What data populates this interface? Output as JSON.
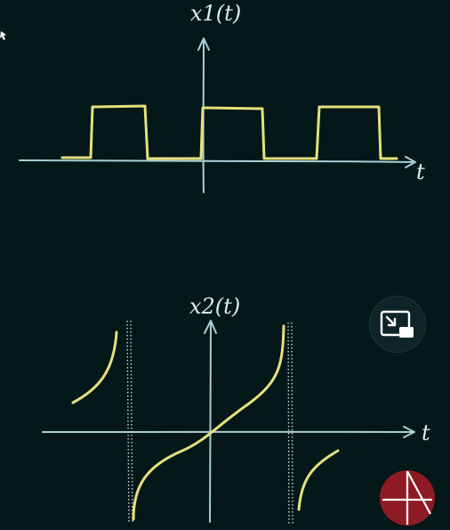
{
  "diagram": {
    "top_plot": {
      "ylabel": "x1(t)",
      "xlabel": "t",
      "signal_type": "periodic rectangular pulse train",
      "pulse_count": 3
    },
    "bottom_plot": {
      "ylabel": "x2(t)",
      "xlabel": "t",
      "signal_type": "periodic tangent-like curve with vertical asymptotes",
      "asymptote_count": 2
    }
  },
  "controls": {
    "pip_icon": "picture-in-picture-icon"
  },
  "branding": {
    "logo_icon": "channel-logo-icon",
    "logo_color": "#8e1b23"
  },
  "colors": {
    "background": "#04181a",
    "signal": "#e5e07c",
    "axis": "#a9cfd6"
  }
}
